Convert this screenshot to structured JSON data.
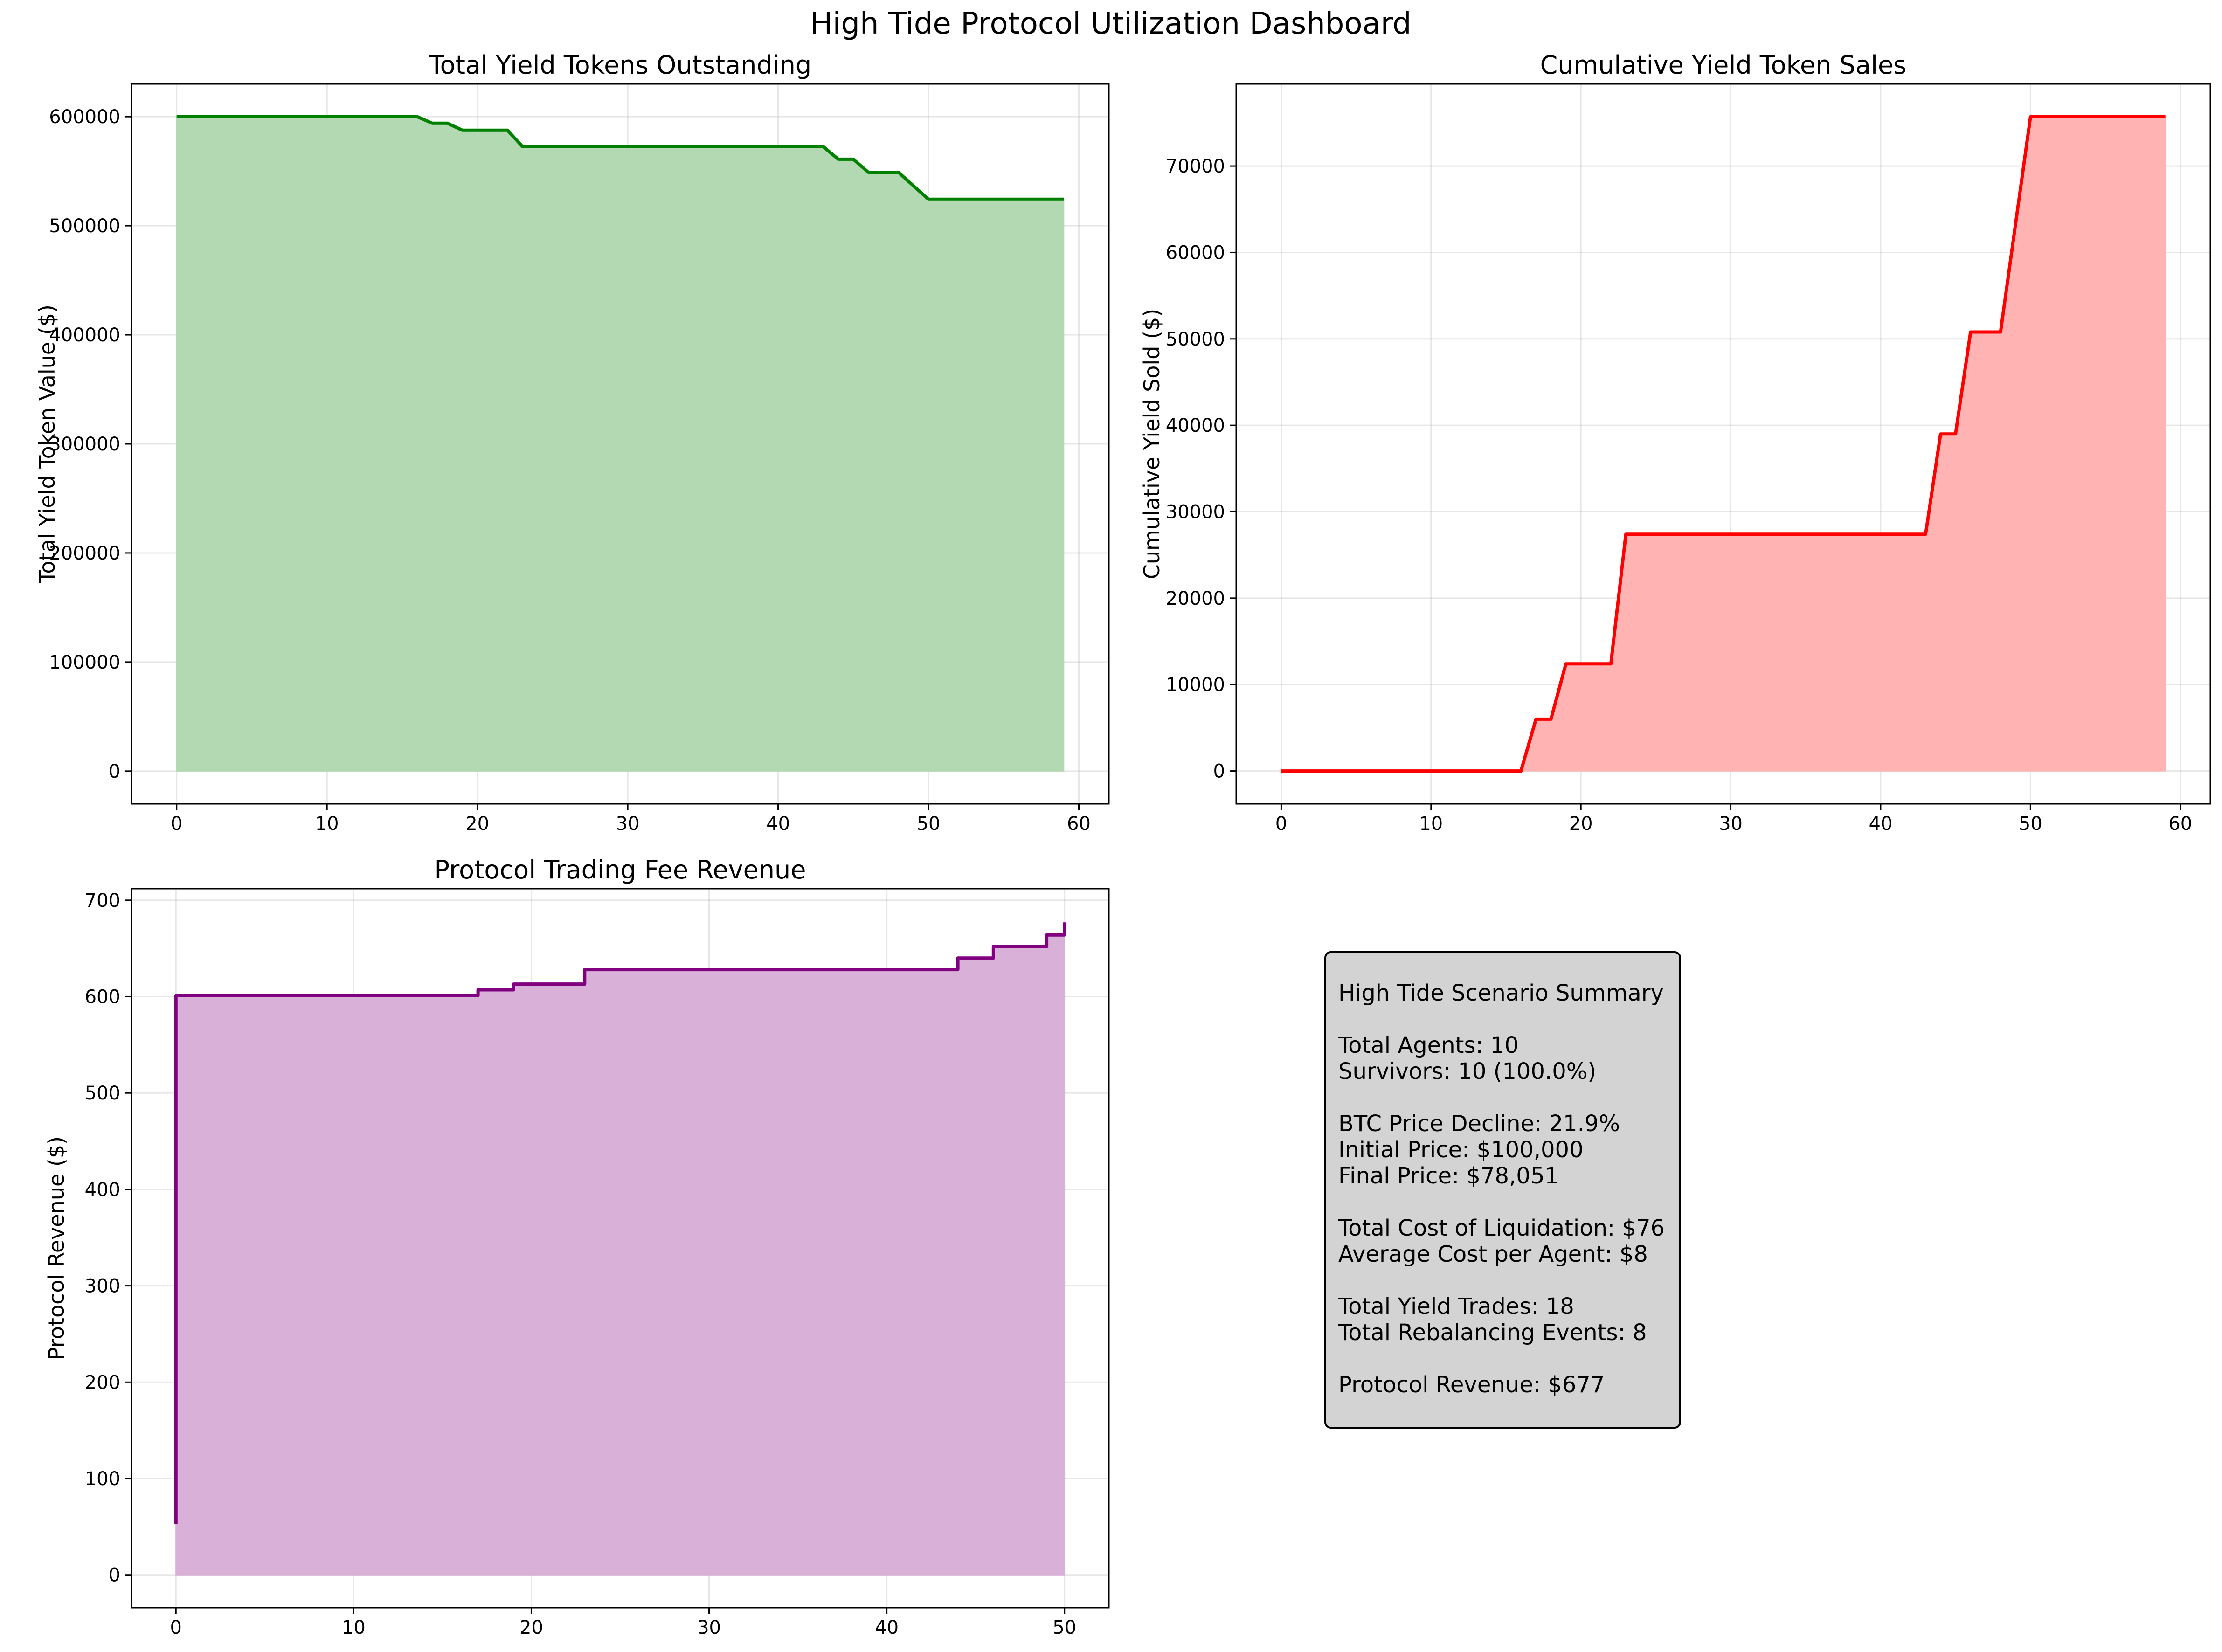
{
  "figure": {
    "suptitle": "High Tide Protocol Utilization Dashboard"
  },
  "chart_data": [
    {
      "id": "yield-tokens-outstanding",
      "type": "area",
      "title": "Total Yield Tokens Outstanding",
      "xlabel": "",
      "ylabel": "Total Yield Token Value ($)",
      "xlim": [
        -3,
        62
      ],
      "ylim": [
        -30000,
        630000
      ],
      "xticks": [
        0,
        10,
        20,
        30,
        40,
        50,
        60
      ],
      "yticks": [
        0,
        100000,
        200000,
        300000,
        400000,
        500000,
        600000
      ],
      "grid": true,
      "line_color": "#008000",
      "fill_color": "#b3d9b3",
      "step": false,
      "x": [
        0,
        16,
        17,
        18,
        19,
        22,
        23,
        43,
        44,
        45,
        46,
        48,
        50,
        59
      ],
      "y": [
        600000,
        600000,
        594000,
        594000,
        587600,
        587600,
        572600,
        572600,
        561000,
        561000,
        549000,
        549000,
        524300,
        524300
      ]
    },
    {
      "id": "cumulative-yield-sales",
      "type": "area",
      "title": "Cumulative Yield Token Sales",
      "xlabel": "",
      "ylabel": "Cumulative Yield Sold ($)",
      "xlim": [
        -3,
        62
      ],
      "ylim": [
        -3800,
        79500
      ],
      "xticks": [
        0,
        10,
        20,
        30,
        40,
        50,
        60
      ],
      "yticks": [
        0,
        10000,
        20000,
        30000,
        40000,
        50000,
        60000,
        70000
      ],
      "grid": true,
      "line_color": "#ff0000",
      "fill_color": "#ffb3b3",
      "step": false,
      "x": [
        0,
        16,
        17,
        18,
        19,
        22,
        23,
        43,
        44,
        45,
        46,
        48,
        50,
        59
      ],
      "y": [
        0,
        0,
        6000,
        6000,
        12400,
        12400,
        27400,
        27400,
        39000,
        39000,
        50800,
        50800,
        75700,
        75700
      ]
    },
    {
      "id": "protocol-fee-revenue",
      "type": "area",
      "title": "Protocol Trading Fee Revenue",
      "xlabel": "",
      "ylabel": "Protocol Revenue ($)",
      "xlim": [
        -2.5,
        52.5
      ],
      "ylim": [
        -34,
        712
      ],
      "xticks": [
        0,
        10,
        20,
        30,
        40,
        50
      ],
      "yticks": [
        0,
        100,
        200,
        300,
        400,
        500,
        600,
        700
      ],
      "grid": true,
      "line_color": "#800080",
      "fill_color": "#d8b0d8",
      "step": true,
      "x": [
        0,
        0,
        17,
        19,
        23,
        44,
        46,
        49,
        50
      ],
      "y": [
        53,
        601,
        607,
        613,
        628,
        640,
        652,
        664,
        677
      ]
    }
  ],
  "summary": {
    "title": "High Tide Scenario Summary",
    "total_agents": "Total Agents: 10",
    "survivors": "Survivors: 10 (100.0%)",
    "btc_decline": "BTC Price Decline: 21.9%",
    "initial_price": "Initial Price: $100,000",
    "final_price": "Final Price: $78,051",
    "total_cost": "Total Cost of Liquidation: $76",
    "avg_cost": "Average Cost per Agent: $8",
    "yield_trades": "Total Yield Trades: 18",
    "rebalancing": "Total Rebalancing Events: 8",
    "revenue": "Protocol Revenue: $677"
  }
}
